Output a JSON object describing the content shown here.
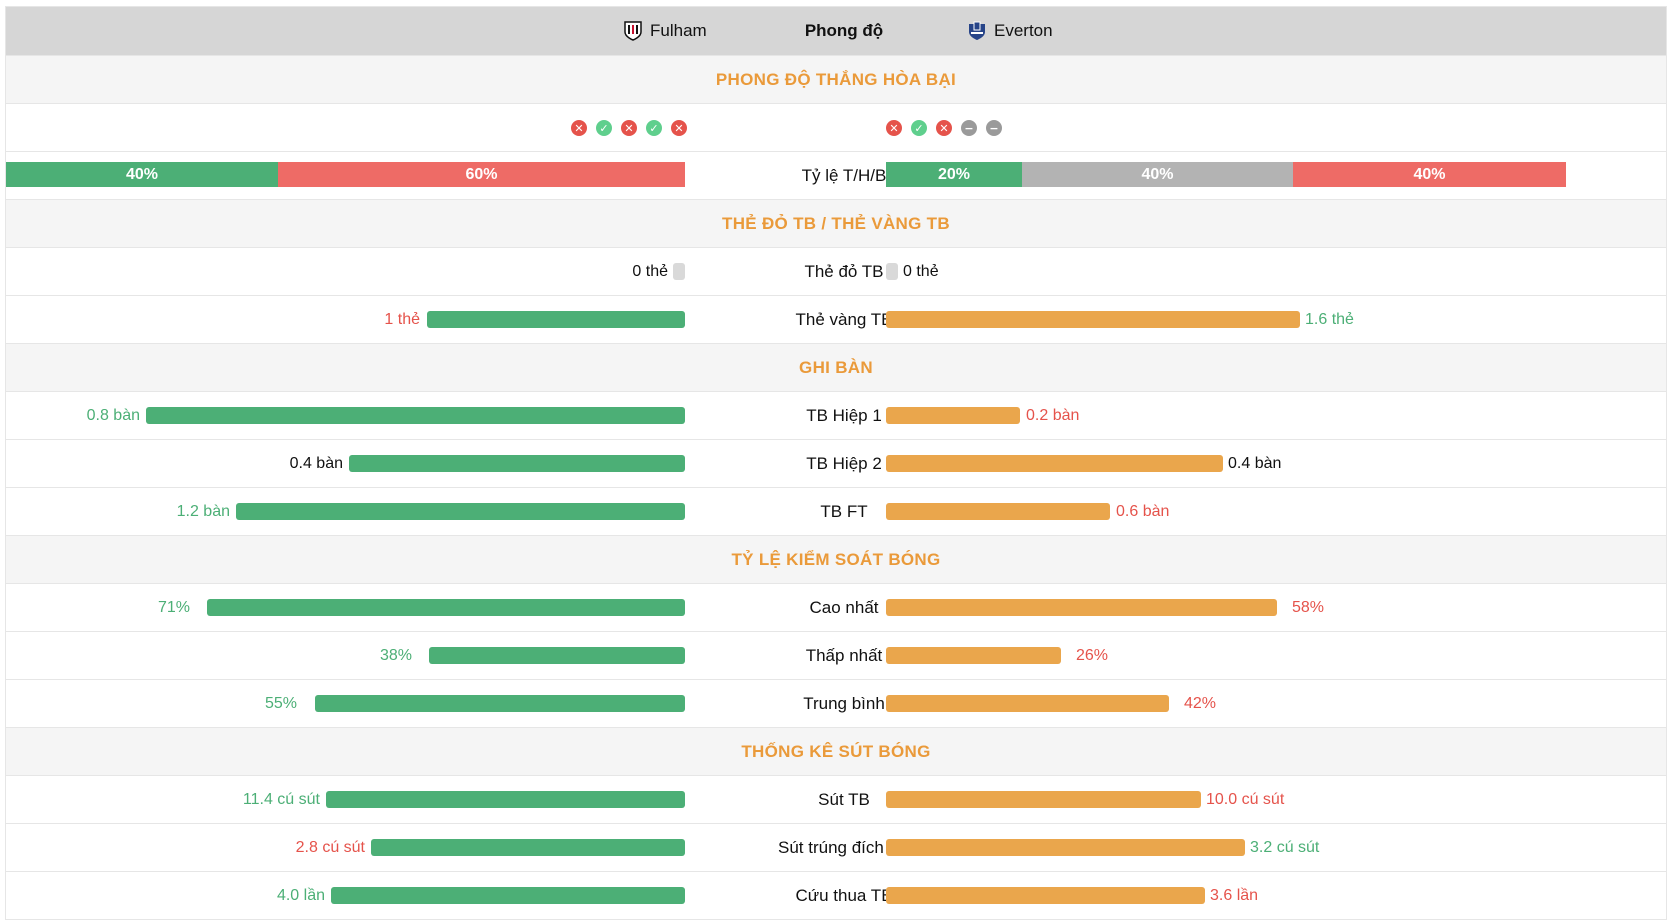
{
  "header": {
    "home_team": "Fulham",
    "middle": "Phong độ",
    "away_team": "Everton",
    "home_logo_icon": "fulham-crest-icon",
    "away_logo_icon": "everton-crest-icon"
  },
  "sections": {
    "form": "PHONG ĐỘ THẮNG HÒA BẠI",
    "cards": "THẺ ĐỎ TB / THẺ VÀNG TB",
    "goals": "GHI BÀN",
    "possession": "TỶ LỆ KIỂM SOÁT BÓNG",
    "shots": "THỐNG KÊ SÚT BÓNG"
  },
  "form": {
    "home": [
      "L",
      "W",
      "L",
      "W",
      "L"
    ],
    "away": [
      "L",
      "W",
      "L",
      "D",
      "D"
    ]
  },
  "ratio": {
    "label": "Tỷ lệ T/H/B",
    "home": {
      "win": "40%",
      "draw": "",
      "loss": "60%"
    },
    "away": {
      "win": "20%",
      "draw": "40%",
      "loss": "40%"
    }
  },
  "stats": {
    "red_card": {
      "label": "Thẻ đỏ TB",
      "home_text": "0 thẻ",
      "away_text": "0 thẻ"
    },
    "yellow_card": {
      "label": "Thẻ vàng TB",
      "home_text": "1 thẻ",
      "away_text": "1.6 thẻ"
    },
    "half1": {
      "label": "TB Hiệp 1",
      "home_text": "0.8 bàn",
      "away_text": "0.2 bàn"
    },
    "half2": {
      "label": "TB Hiệp 2",
      "home_text": "0.4 bàn",
      "away_text": "0.4 bàn"
    },
    "ft": {
      "label": "TB FT",
      "home_text": "1.2 bàn",
      "away_text": "0.6 bàn"
    },
    "poss_max": {
      "label": "Cao nhất",
      "home_text": "71%",
      "away_text": "58%"
    },
    "poss_min": {
      "label": "Thấp nhất",
      "home_text": "38%",
      "away_text": "26%"
    },
    "poss_avg": {
      "label": "Trung bình",
      "home_text": "55%",
      "away_text": "42%"
    },
    "shots": {
      "label": "Sút TB",
      "home_text": "11.4 cú sút",
      "away_text": "10.0 cú sút"
    },
    "shots_on": {
      "label": "Sút trúng đích TB",
      "home_text": "2.8 cú sút",
      "away_text": "3.2 cú sút"
    },
    "saves": {
      "label": "Cứu thua TB",
      "home_text": "4.0 lần",
      "away_text": "3.6 lần"
    }
  },
  "colors": {
    "home_bar": "#4caf76",
    "away_bar": "#eaa64c",
    "section_title": "#ea9a3a",
    "better": "#4caf76",
    "worse": "#e5534b"
  }
}
